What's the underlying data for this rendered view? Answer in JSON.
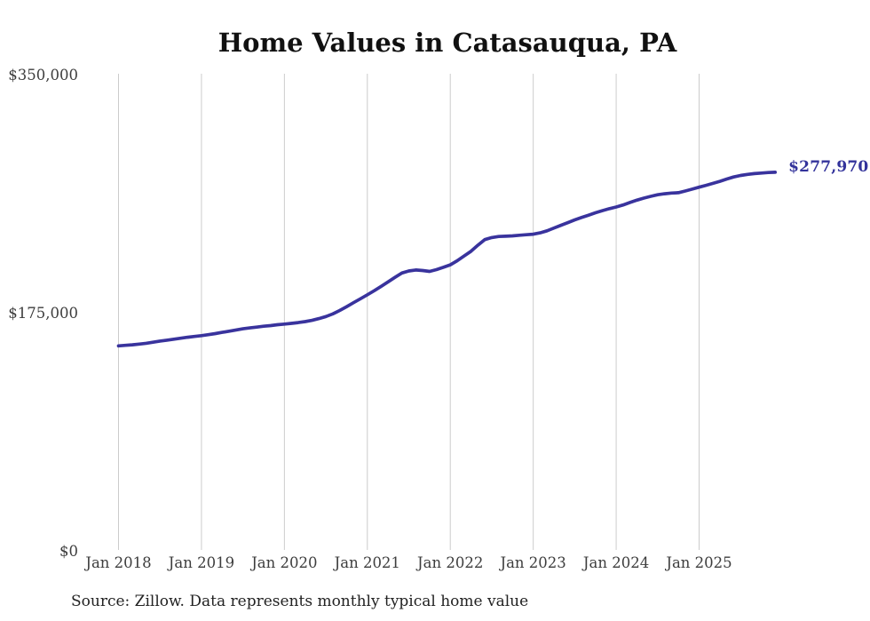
{
  "title": "Home Values in Catasauqua, PA",
  "source_note": "Source: Zillow. Data represents monthly typical home value",
  "end_label": "$277,970",
  "colors": {
    "line": "#39339d",
    "grid": "#cccccc",
    "title_text": "#111111",
    "axis_text": "#3d3d3d",
    "end_label_text": "#33339b",
    "source_text": "#222222",
    "background": "#ffffff"
  },
  "chart_data": {
    "type": "line",
    "title": "Home Values in Catasauqua, PA",
    "ylabel": "",
    "xlabel": "",
    "ylim": [
      0,
      350000
    ],
    "grid": "vertical-only",
    "legend": "none",
    "y_ticks": [
      {
        "label": "$350,000",
        "value": 350000
      },
      {
        "label": "$175,000",
        "value": 175000
      },
      {
        "label": "$0",
        "value": 0
      }
    ],
    "x_tick_labels": [
      "Jan 2018",
      "Jan 2019",
      "Jan 2020",
      "Jan 2021",
      "Jan 2022",
      "Jan 2023",
      "Jan 2024",
      "Jan 2025"
    ],
    "final_value": 277970,
    "final_value_label": "$277,970",
    "series": [
      {
        "name": "Monthly typical home value",
        "unit": "USD",
        "x": [
          "2018-01",
          "2018-02",
          "2018-03",
          "2018-04",
          "2018-05",
          "2018-06",
          "2018-07",
          "2018-08",
          "2018-09",
          "2018-10",
          "2018-11",
          "2018-12",
          "2019-01",
          "2019-02",
          "2019-03",
          "2019-04",
          "2019-05",
          "2019-06",
          "2019-07",
          "2019-08",
          "2019-09",
          "2019-10",
          "2019-11",
          "2019-12",
          "2020-01",
          "2020-02",
          "2020-03",
          "2020-04",
          "2020-05",
          "2020-06",
          "2020-07",
          "2020-08",
          "2020-09",
          "2020-10",
          "2020-11",
          "2020-12",
          "2021-01",
          "2021-02",
          "2021-03",
          "2021-04",
          "2021-05",
          "2021-06",
          "2021-07",
          "2021-08",
          "2021-09",
          "2021-10",
          "2021-11",
          "2021-12",
          "2022-01",
          "2022-02",
          "2022-03",
          "2022-04",
          "2022-05",
          "2022-06",
          "2022-07",
          "2022-08",
          "2022-09",
          "2022-10",
          "2022-11",
          "2022-12",
          "2023-01",
          "2023-02",
          "2023-03",
          "2023-04",
          "2023-05",
          "2023-06",
          "2023-07",
          "2023-08",
          "2023-09",
          "2023-10",
          "2023-11",
          "2023-12",
          "2024-01",
          "2024-02",
          "2024-03",
          "2024-04",
          "2024-05",
          "2024-06",
          "2024-07",
          "2024-08",
          "2024-09",
          "2024-10",
          "2024-11",
          "2024-12",
          "2025-01",
          "2025-02",
          "2025-03",
          "2025-04",
          "2025-05",
          "2025-06",
          "2025-07",
          "2025-08",
          "2025-09",
          "2025-10",
          "2025-11",
          "2025-12"
        ],
        "values": [
          150500,
          150900,
          151300,
          151800,
          152400,
          153200,
          154000,
          154700,
          155400,
          156100,
          156800,
          157400,
          158000,
          158700,
          159500,
          160400,
          161300,
          162200,
          163000,
          163700,
          164300,
          164900,
          165400,
          166000,
          166500,
          167000,
          167600,
          168300,
          169200,
          170500,
          172000,
          174000,
          176500,
          179300,
          182200,
          185100,
          188000,
          191000,
          194200,
          197500,
          200800,
          204000,
          205500,
          206200,
          205800,
          205200,
          206500,
          208200,
          210000,
          213000,
          216500,
          220000,
          224500,
          228500,
          230000,
          230800,
          231000,
          231300,
          231700,
          232100,
          232500,
          233500,
          235000,
          237000,
          239000,
          241000,
          243000,
          244800,
          246500,
          248200,
          249800,
          251200,
          252500,
          254000,
          255800,
          257500,
          259000,
          260300,
          261500,
          262200,
          262700,
          263000,
          264200,
          265600,
          267000,
          268400,
          269800,
          271300,
          273000,
          274500,
          275600,
          276400,
          277000,
          277400,
          277800,
          277970
        ]
      }
    ]
  }
}
